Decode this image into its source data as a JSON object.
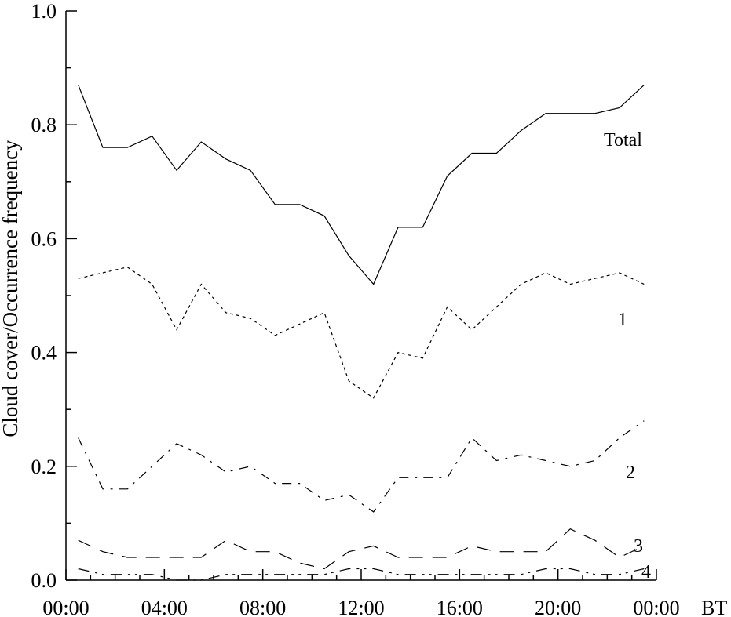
{
  "chart_data": {
    "type": "line",
    "title": "",
    "ylabel": "Cloud cover/Occurrence frequency",
    "xlabel": "BT",
    "ylim": [
      0,
      1
    ],
    "xlim": [
      0,
      24
    ],
    "x_tick_labels": [
      "00:00",
      "04:00",
      "08:00",
      "12:00",
      "16:00",
      "20:00",
      "00:00"
    ],
    "x_tick_values": [
      0,
      4,
      8,
      12,
      16,
      20,
      24
    ],
    "y_tick_labels": [
      "0.0",
      "0.2",
      "0.4",
      "0.6",
      "0.8",
      "1.0"
    ],
    "y_tick_values": [
      0,
      0.2,
      0.4,
      0.6,
      0.8,
      1.0
    ],
    "x": [
      0.5,
      1.5,
      2.5,
      3.5,
      4.5,
      5.5,
      6.5,
      7.5,
      8.5,
      9.5,
      10.5,
      11.5,
      12.5,
      13.5,
      14.5,
      15.5,
      16.5,
      17.5,
      18.5,
      19.5,
      20.5,
      21.5,
      22.5,
      23.5
    ],
    "series": [
      {
        "name": "Total",
        "dash": "solid",
        "values": [
          0.87,
          0.76,
          0.76,
          0.78,
          0.72,
          0.77,
          0.74,
          0.72,
          0.66,
          0.66,
          0.64,
          0.57,
          0.52,
          0.62,
          0.62,
          0.71,
          0.75,
          0.75,
          0.79,
          0.82,
          0.82,
          0.82,
          0.83,
          0.87
        ]
      },
      {
        "name": "1",
        "dash": "short-dash",
        "values": [
          0.53,
          0.54,
          0.55,
          0.52,
          0.44,
          0.52,
          0.47,
          0.46,
          0.43,
          0.45,
          0.47,
          0.35,
          0.32,
          0.4,
          0.39,
          0.48,
          0.44,
          0.48,
          0.52,
          0.54,
          0.52,
          0.53,
          0.54,
          0.52
        ]
      },
      {
        "name": "2",
        "dash": "dash-dot",
        "values": [
          0.25,
          0.16,
          0.16,
          0.2,
          0.24,
          0.22,
          0.19,
          0.2,
          0.17,
          0.17,
          0.14,
          0.15,
          0.12,
          0.18,
          0.18,
          0.18,
          0.25,
          0.21,
          0.22,
          0.21,
          0.2,
          0.21,
          0.25,
          0.28
        ]
      },
      {
        "name": "3",
        "dash": "long-dash",
        "values": [
          0.07,
          0.05,
          0.04,
          0.04,
          0.04,
          0.04,
          0.07,
          0.05,
          0.05,
          0.03,
          0.02,
          0.05,
          0.06,
          0.04,
          0.04,
          0.04,
          0.06,
          0.05,
          0.05,
          0.05,
          0.09,
          0.07,
          0.04,
          0.06
        ]
      },
      {
        "name": "4",
        "dash": "dash-dot-dot",
        "values": [
          0.02,
          0.01,
          0.01,
          0.01,
          0.0,
          0.0,
          0.01,
          0.01,
          0.01,
          0.01,
          0.01,
          0.02,
          0.02,
          0.01,
          0.01,
          0.01,
          0.01,
          0.01,
          0.01,
          0.02,
          0.02,
          0.01,
          0.01,
          0.02
        ]
      }
    ],
    "grid": false,
    "legend": "inline-labels-right"
  }
}
